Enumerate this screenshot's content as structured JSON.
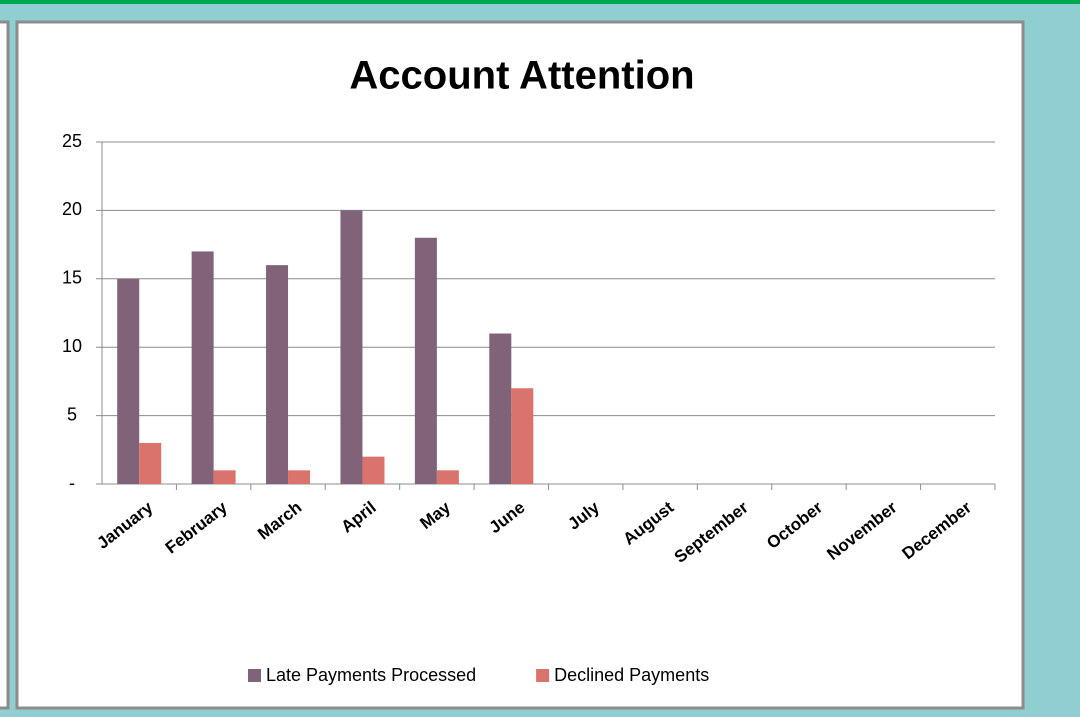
{
  "chart_data": {
    "type": "bar",
    "title": "Account Attention",
    "categories": [
      "January",
      "February",
      "March",
      "April",
      "May",
      "June",
      "July",
      "August",
      "September",
      "October",
      "November",
      "December"
    ],
    "series": [
      {
        "name": "Late Payments Processed",
        "color": "#806279",
        "values": [
          15,
          17,
          16,
          20,
          18,
          11,
          null,
          null,
          null,
          null,
          null,
          null
        ]
      },
      {
        "name": "Declined Payments",
        "color": "#d9736b",
        "values": [
          3,
          1,
          1,
          2,
          1,
          7,
          null,
          null,
          null,
          null,
          null,
          null
        ]
      }
    ],
    "ylim": [
      0,
      25
    ],
    "yticks": [
      {
        "value": 0,
        "label": "-"
      },
      5,
      10,
      15,
      20,
      25
    ],
    "grid": true,
    "legend": "bottom"
  }
}
